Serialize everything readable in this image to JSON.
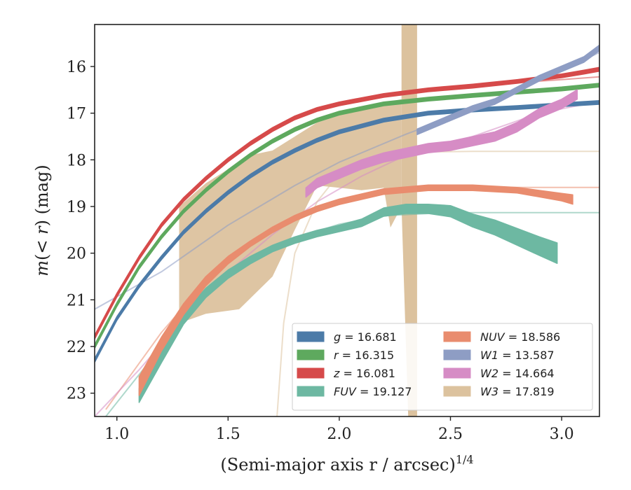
{
  "chart_data": {
    "type": "line",
    "xlabel": "(Semi-major axis r / arcsec)",
    "xlabel_sup": "1/4",
    "ylabel": "m(< r) (mag)",
    "xlim": [
      0.9,
      3.17
    ],
    "ylim": [
      23.5,
      15.1
    ],
    "x_ticks": [
      1.0,
      1.5,
      2.0,
      2.5,
      3.0
    ],
    "x_tick_labels": [
      "1.0",
      "1.5",
      "2.0",
      "2.5",
      "3.0"
    ],
    "y_ticks": [
      16,
      17,
      18,
      19,
      20,
      21,
      22,
      23
    ],
    "y_tick_labels": [
      "16",
      "17",
      "18",
      "19",
      "20",
      "21",
      "22",
      "23"
    ],
    "legend_position": "lower-right",
    "series": [
      {
        "name": "g = 16.681",
        "band": "g",
        "total": "16.681",
        "color": "#4c7ba8",
        "data": [
          [
            0.9,
            22.3
          ],
          [
            1.0,
            21.4
          ],
          [
            1.1,
            20.7
          ],
          [
            1.2,
            20.1
          ],
          [
            1.3,
            19.55
          ],
          [
            1.4,
            19.1
          ],
          [
            1.5,
            18.7
          ],
          [
            1.6,
            18.35
          ],
          [
            1.7,
            18.05
          ],
          [
            1.8,
            17.8
          ],
          [
            1.9,
            17.58
          ],
          [
            2.0,
            17.4
          ],
          [
            2.2,
            17.15
          ],
          [
            2.4,
            17.0
          ],
          [
            2.6,
            16.93
          ],
          [
            2.8,
            16.88
          ],
          [
            3.0,
            16.82
          ],
          [
            3.17,
            16.77
          ]
        ],
        "model": [
          [
            2.6,
            16.9
          ],
          [
            2.8,
            16.86
          ],
          [
            3.0,
            16.8
          ],
          [
            3.17,
            16.76
          ]
        ],
        "width": 0.04
      },
      {
        "name": "r = 16.315",
        "band": "r",
        "total": "16.315",
        "color": "#5ea95e",
        "data": [
          [
            0.9,
            22.0
          ],
          [
            1.0,
            21.1
          ],
          [
            1.1,
            20.3
          ],
          [
            1.2,
            19.65
          ],
          [
            1.3,
            19.1
          ],
          [
            1.4,
            18.65
          ],
          [
            1.5,
            18.25
          ],
          [
            1.6,
            17.9
          ],
          [
            1.7,
            17.6
          ],
          [
            1.8,
            17.35
          ],
          [
            1.9,
            17.15
          ],
          [
            2.0,
            17.0
          ],
          [
            2.2,
            16.8
          ],
          [
            2.4,
            16.7
          ],
          [
            2.6,
            16.62
          ],
          [
            2.8,
            16.55
          ],
          [
            3.0,
            16.48
          ],
          [
            3.17,
            16.4
          ]
        ],
        "model": [
          [
            2.4,
            16.68
          ],
          [
            2.7,
            16.58
          ],
          [
            3.0,
            16.48
          ],
          [
            3.17,
            16.42
          ]
        ],
        "width": 0.04
      },
      {
        "name": "z = 16.081",
        "band": "z",
        "total": "16.081",
        "color": "#d64a4a",
        "data": [
          [
            0.9,
            21.8
          ],
          [
            1.0,
            20.9
          ],
          [
            1.1,
            20.1
          ],
          [
            1.2,
            19.4
          ],
          [
            1.3,
            18.85
          ],
          [
            1.4,
            18.4
          ],
          [
            1.5,
            18.0
          ],
          [
            1.6,
            17.65
          ],
          [
            1.7,
            17.35
          ],
          [
            1.8,
            17.1
          ],
          [
            1.9,
            16.92
          ],
          [
            2.0,
            16.8
          ],
          [
            2.2,
            16.62
          ],
          [
            2.4,
            16.5
          ],
          [
            2.6,
            16.42
          ],
          [
            2.8,
            16.32
          ],
          [
            3.0,
            16.2
          ],
          [
            3.1,
            16.12
          ],
          [
            3.17,
            16.06
          ]
        ],
        "model": [
          [
            2.4,
            16.52
          ],
          [
            2.7,
            16.38
          ],
          [
            3.0,
            16.28
          ],
          [
            3.17,
            16.22
          ]
        ],
        "width": 0.04
      },
      {
        "name": "FUV = 19.127",
        "band": "FUV",
        "total": "19.127",
        "color": "#6db8a2",
        "data": [
          [
            1.1,
            23.05
          ],
          [
            1.2,
            22.2
          ],
          [
            1.3,
            21.4
          ],
          [
            1.4,
            20.85
          ],
          [
            1.5,
            20.45
          ],
          [
            1.6,
            20.15
          ],
          [
            1.7,
            19.9
          ],
          [
            1.8,
            19.72
          ],
          [
            1.9,
            19.58
          ],
          [
            2.0,
            19.47
          ],
          [
            2.1,
            19.35
          ],
          [
            2.2,
            19.12
          ],
          [
            2.3,
            19.05
          ],
          [
            2.4,
            19.05
          ],
          [
            2.5,
            19.1
          ],
          [
            2.6,
            19.3
          ],
          [
            2.7,
            19.45
          ],
          [
            2.8,
            19.65
          ],
          [
            2.9,
            19.85
          ],
          [
            2.98,
            20.0
          ]
        ],
        "widths": [
          0.15,
          0.15,
          0.12,
          0.1,
          0.09,
          0.08,
          0.07,
          0.07,
          0.07,
          0.07,
          0.08,
          0.09,
          0.1,
          0.1,
          0.12,
          0.14,
          0.16,
          0.18,
          0.2,
          0.22
        ],
        "model": [
          [
            0.95,
            23.5
          ],
          [
            1.2,
            22.0
          ],
          [
            1.4,
            20.9
          ],
          [
            1.6,
            20.15
          ],
          [
            1.8,
            19.68
          ],
          [
            2.0,
            19.38
          ],
          [
            2.2,
            19.2
          ],
          [
            2.4,
            19.15
          ],
          [
            2.6,
            19.13
          ],
          [
            3.17,
            19.13
          ]
        ]
      },
      {
        "name": "NUV = 18.586",
        "band": "NUV",
        "total": "18.586",
        "color": "#e98c6e",
        "data": [
          [
            1.1,
            22.85
          ],
          [
            1.2,
            21.95
          ],
          [
            1.3,
            21.2
          ],
          [
            1.4,
            20.6
          ],
          [
            1.5,
            20.15
          ],
          [
            1.6,
            19.8
          ],
          [
            1.7,
            19.5
          ],
          [
            1.8,
            19.25
          ],
          [
            1.9,
            19.05
          ],
          [
            2.0,
            18.9
          ],
          [
            2.2,
            18.68
          ],
          [
            2.4,
            18.6
          ],
          [
            2.6,
            18.6
          ],
          [
            2.8,
            18.65
          ],
          [
            3.0,
            18.8
          ],
          [
            3.05,
            18.85
          ]
        ],
        "widths": [
          0.2,
          0.15,
          0.12,
          0.1,
          0.08,
          0.06,
          0.06,
          0.06,
          0.06,
          0.06,
          0.06,
          0.06,
          0.06,
          0.06,
          0.08,
          0.1
        ],
        "model": [
          [
            0.95,
            23.35
          ],
          [
            1.2,
            21.7
          ],
          [
            1.4,
            20.6
          ],
          [
            1.6,
            19.8
          ],
          [
            1.8,
            19.2
          ],
          [
            2.0,
            18.85
          ],
          [
            2.2,
            18.66
          ],
          [
            2.4,
            18.6
          ],
          [
            2.6,
            18.59
          ],
          [
            3.17,
            18.59
          ]
        ]
      },
      {
        "name": "W1 = 13.587",
        "band": "W1",
        "total": "13.587",
        "color": "#8e9dc4",
        "data": [
          [
            2.35,
            17.4
          ],
          [
            2.5,
            17.1
          ],
          [
            2.6,
            16.9
          ],
          [
            2.7,
            16.75
          ],
          [
            2.8,
            16.5
          ],
          [
            2.9,
            16.25
          ],
          [
            3.0,
            16.05
          ],
          [
            3.1,
            15.85
          ],
          [
            3.17,
            15.6
          ]
        ],
        "width": 0.06,
        "model": [
          [
            0.9,
            21.2
          ],
          [
            1.2,
            20.4
          ],
          [
            1.5,
            19.4
          ],
          [
            1.8,
            18.55
          ],
          [
            2.0,
            18.05
          ],
          [
            2.3,
            17.45
          ],
          [
            2.6,
            16.92
          ],
          [
            2.9,
            16.3
          ],
          [
            3.17,
            15.7
          ]
        ]
      },
      {
        "name": "W2 = 14.664",
        "band": "W2",
        "total": "14.664",
        "color": "#d68cc5",
        "data": [
          [
            1.85,
            18.7
          ],
          [
            1.9,
            18.5
          ],
          [
            2.0,
            18.3
          ],
          [
            2.1,
            18.1
          ],
          [
            2.2,
            17.95
          ],
          [
            2.3,
            17.85
          ],
          [
            2.4,
            17.75
          ],
          [
            2.5,
            17.7
          ],
          [
            2.6,
            17.6
          ],
          [
            2.7,
            17.5
          ],
          [
            2.8,
            17.3
          ],
          [
            2.9,
            17.0
          ],
          [
            3.0,
            16.8
          ],
          [
            3.07,
            16.6
          ]
        ],
        "width": 0.1,
        "model": [
          [
            0.9,
            23.5
          ],
          [
            1.1,
            22.5
          ],
          [
            1.3,
            21.4
          ],
          [
            1.5,
            20.4
          ],
          [
            1.7,
            19.6
          ],
          [
            1.9,
            18.9
          ],
          [
            2.1,
            18.35
          ],
          [
            2.3,
            17.9
          ],
          [
            2.6,
            17.5
          ],
          [
            2.9,
            17.0
          ],
          [
            3.17,
            16.75
          ]
        ]
      },
      {
        "name": "W3 = 17.819",
        "band": "W3",
        "total": "17.819",
        "color": "#dcc29e",
        "upper": [
          [
            1.28,
            19.0
          ],
          [
            1.4,
            18.5
          ],
          [
            1.5,
            18.2
          ],
          [
            1.6,
            17.9
          ],
          [
            1.7,
            17.8
          ],
          [
            1.8,
            17.5
          ],
          [
            1.9,
            17.2
          ],
          [
            2.0,
            17.05
          ],
          [
            2.1,
            16.9
          ],
          [
            2.2,
            16.78
          ],
          [
            2.28,
            16.7
          ]
        ],
        "lower": [
          [
            1.28,
            21.5
          ],
          [
            1.4,
            21.3
          ],
          [
            1.55,
            21.2
          ],
          [
            1.7,
            20.5
          ],
          [
            1.8,
            19.5
          ],
          [
            1.9,
            18.55
          ],
          [
            2.0,
            18.6
          ],
          [
            2.1,
            18.65
          ],
          [
            2.2,
            18.6
          ],
          [
            2.23,
            19.45
          ],
          [
            2.28,
            19.0
          ]
        ],
        "spike": [
          [
            2.28,
            15.1
          ],
          [
            2.35,
            15.1
          ],
          [
            2.35,
            23.5
          ],
          [
            2.31,
            23.5
          ],
          [
            2.28,
            19.0
          ]
        ],
        "model": [
          [
            1.72,
            23.5
          ],
          [
            1.75,
            21.5
          ],
          [
            1.8,
            20.0
          ],
          [
            1.9,
            18.9
          ],
          [
            2.0,
            18.3
          ],
          [
            2.2,
            17.95
          ],
          [
            2.4,
            17.83
          ],
          [
            2.6,
            17.82
          ],
          [
            3.17,
            17.82
          ]
        ]
      }
    ]
  }
}
